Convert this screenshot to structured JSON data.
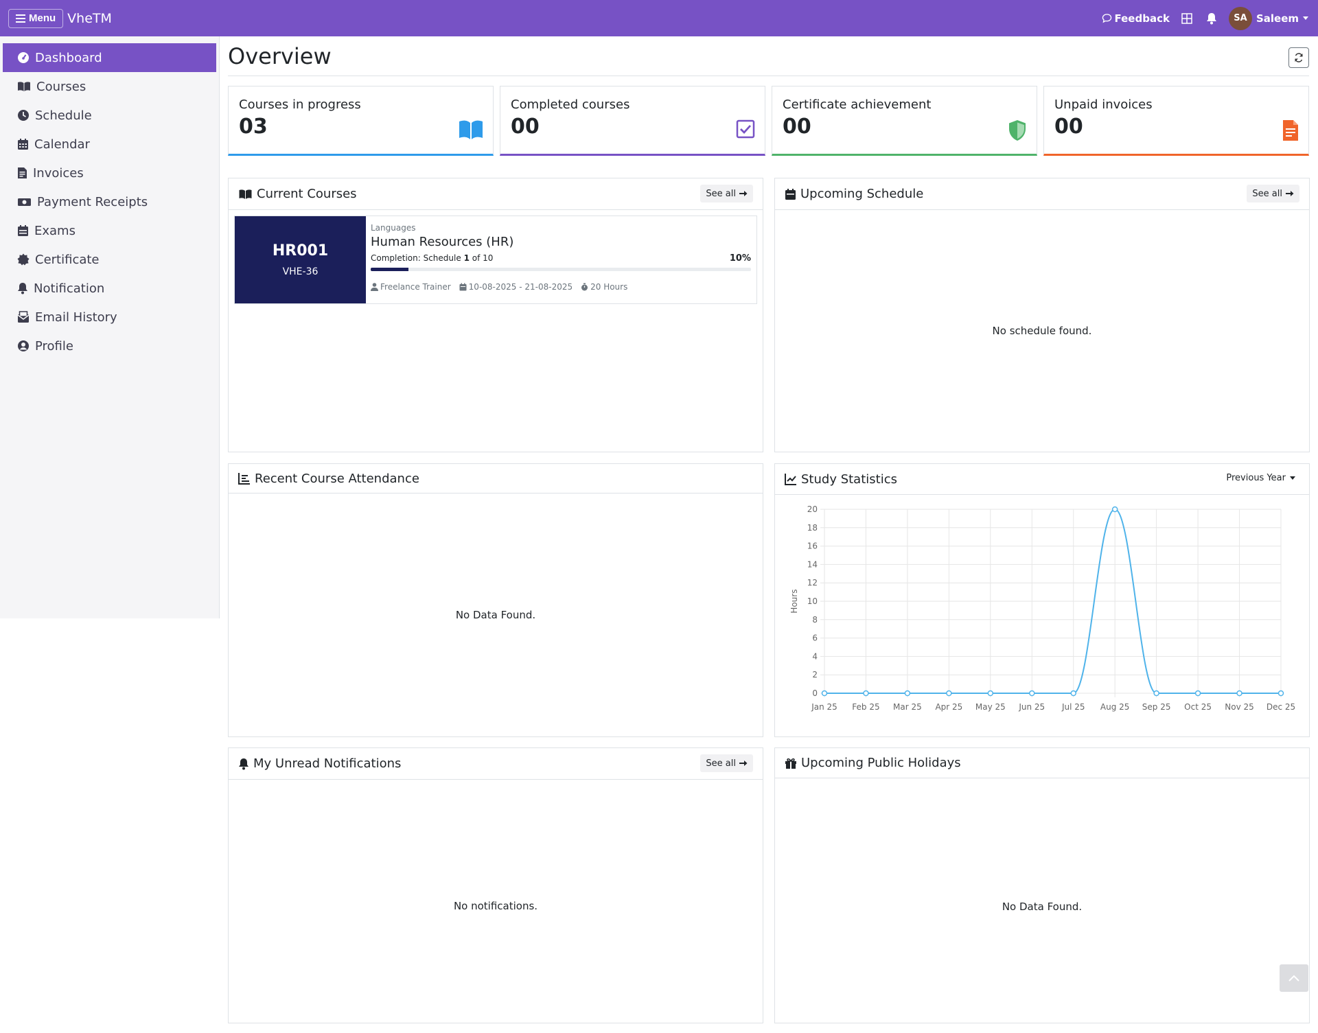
{
  "topbar": {
    "menu_label": "Menu",
    "brand": "VheTM",
    "feedback_label": "Feedback",
    "avatar_initials": "SA",
    "user_name": "Saleem"
  },
  "sidebar": {
    "items": [
      {
        "label": "Dashboard",
        "icon": "dashboard-icon",
        "active": true
      },
      {
        "label": "Courses",
        "icon": "book-icon"
      },
      {
        "label": "Schedule",
        "icon": "clock-icon"
      },
      {
        "label": "Calendar",
        "icon": "calendar-icon"
      },
      {
        "label": "Invoices",
        "icon": "file-invoice-icon"
      },
      {
        "label": "Payment Receipts",
        "icon": "money-icon"
      },
      {
        "label": "Exams",
        "icon": "exam-icon"
      },
      {
        "label": "Certificate",
        "icon": "certificate-icon"
      },
      {
        "label": "Notification",
        "icon": "bell-icon"
      },
      {
        "label": "Email History",
        "icon": "email-icon"
      },
      {
        "label": "Profile",
        "icon": "user-circle-icon"
      }
    ]
  },
  "page": {
    "title": "Overview"
  },
  "stats": [
    {
      "label": "Courses in progress",
      "value": "03",
      "icon": "book-open-icon",
      "color": "#2e9bea"
    },
    {
      "label": "Completed courses",
      "value": "00",
      "icon": "check-square-icon",
      "color": "#7752c5"
    },
    {
      "label": "Certificate achievement",
      "value": "00",
      "icon": "shield-icon",
      "color": "#4fb36a"
    },
    {
      "label": "Unpaid invoices",
      "value": "00",
      "icon": "file-invoice-icon",
      "color": "#f0642a"
    }
  ],
  "current_courses": {
    "title": "Current Courses",
    "see_all": "See all",
    "course": {
      "code": "HR001",
      "batch": "VHE-36",
      "category": "Languages",
      "name": "Human Resources (HR)",
      "completion_prefix": "Completion: Schedule",
      "completion_current": "1",
      "completion_of": "of 10",
      "percent_label": "10%",
      "progress": 0.1,
      "trainer": "Freelance Trainer",
      "dates": "10-08-2025 - 21-08-2025",
      "hours": "20 Hours"
    }
  },
  "upcoming_schedule": {
    "title": "Upcoming Schedule",
    "see_all": "See all",
    "empty": "No schedule found."
  },
  "attendance": {
    "title": "Recent Course Attendance",
    "empty": "No Data Found."
  },
  "study_stats": {
    "title": "Study Statistics",
    "period": "Previous Year"
  },
  "notifications": {
    "title": "My Unread Notifications",
    "see_all": "See all",
    "empty": "No notifications."
  },
  "holidays": {
    "title": "Upcoming Public Holidays",
    "empty": "No Data Found."
  },
  "chart_data": {
    "type": "line",
    "categories": [
      "Jan 25",
      "Feb 25",
      "Mar 25",
      "Apr 25",
      "May 25",
      "Jun 25",
      "Jul 25",
      "Aug 25",
      "Sep 25",
      "Oct 25",
      "Nov 25",
      "Dec 25"
    ],
    "series": [
      {
        "values": [
          0,
          0,
          0,
          0,
          0,
          0,
          0,
          20,
          0,
          0,
          0,
          0
        ],
        "color": "#4fb3ea"
      }
    ],
    "ylabel": "Hours",
    "yticks": [
      "0",
      "2",
      "4",
      "6",
      "8",
      "10",
      "12",
      "14",
      "16",
      "18",
      "20"
    ],
    "ylim": [
      0,
      20
    ],
    "grid": true
  }
}
